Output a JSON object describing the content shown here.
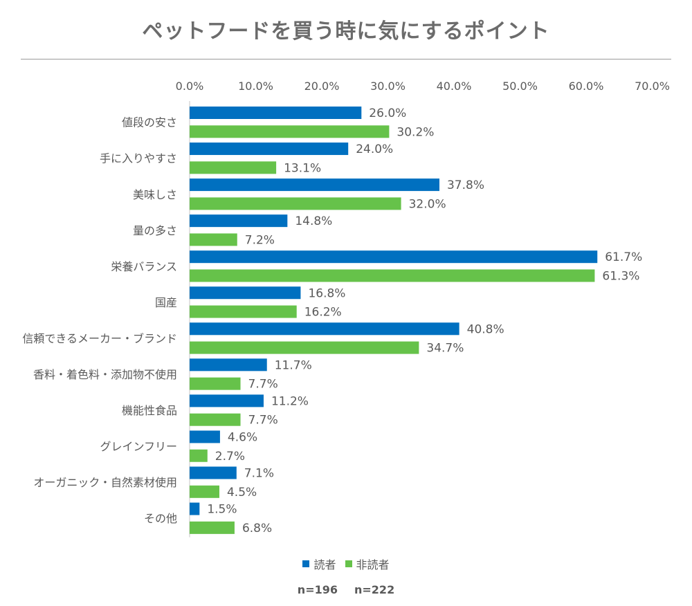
{
  "chart_data": {
    "type": "bar",
    "orientation": "horizontal",
    "title": "ペットフードを買う時に気にするポイント",
    "categories": [
      "値段の安さ",
      "手に入りやすさ",
      "美味しさ",
      "量の多さ",
      "栄養バランス",
      "国産",
      "信頼できるメーカー・ブランド",
      "香料・着色料・添加物不使用",
      "機能性食品",
      "グレインフリー",
      "オーガニック・自然素材使用",
      "その他"
    ],
    "series": [
      {
        "name": "読者",
        "color": "#0070c0",
        "values": [
          26.0,
          24.0,
          37.8,
          14.8,
          61.7,
          16.8,
          40.8,
          11.7,
          11.2,
          4.6,
          7.1,
          1.5
        ]
      },
      {
        "name": "非読者",
        "color": "#66c24a",
        "values": [
          30.2,
          13.1,
          32.0,
          7.2,
          61.3,
          16.2,
          34.7,
          7.7,
          7.7,
          2.7,
          4.5,
          6.8
        ]
      }
    ],
    "xlim": [
      0,
      70
    ],
    "x_ticks": [
      "0.0%",
      "10.0%",
      "20.0%",
      "30.0%",
      "40.0%",
      "50.0%",
      "60.0%",
      "70.0%"
    ],
    "value_format": "%",
    "grid": false,
    "legend_position": "bottom"
  },
  "sample_sizes": [
    "n=196",
    "n=222"
  ]
}
